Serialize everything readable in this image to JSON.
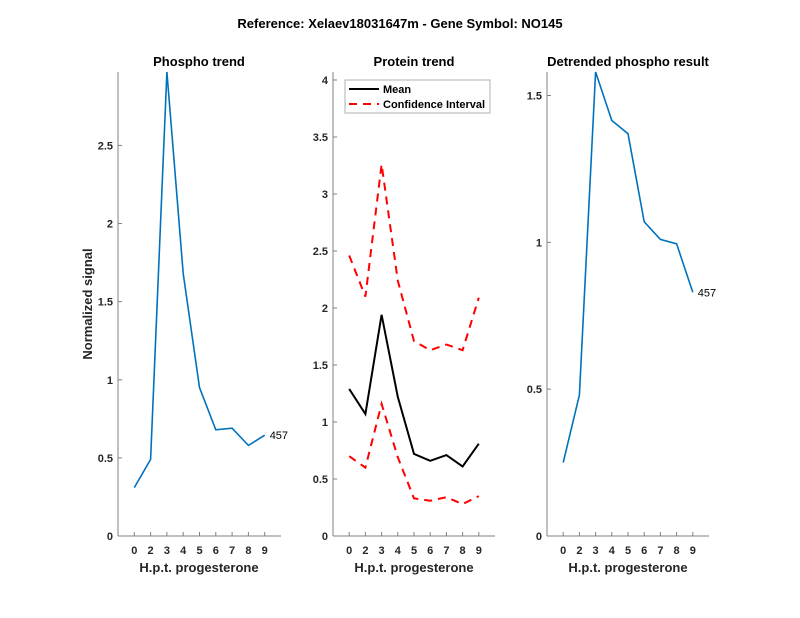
{
  "suptitle": "Reference:  Xelaev18031647m - Gene Symbol:  NO145",
  "colors": {
    "phospho": "#0072BD",
    "mean": "#000000",
    "ci": "#FF0000",
    "axis": "#808080"
  },
  "chart_data": [
    {
      "type": "line",
      "title": "Phospho trend",
      "xlabel": "H.p.t. progesterone",
      "ylabel": "Normalized signal",
      "categories": [
        "0",
        "2",
        "3",
        "4",
        "5",
        "6",
        "7",
        "8",
        "9"
      ],
      "ylim": [
        0,
        2.97
      ],
      "yticks": [
        "0",
        "0.5",
        "1",
        "1.5",
        "2",
        "2.5"
      ],
      "ytick_values": [
        0,
        0.5,
        1,
        1.5,
        2,
        2.5
      ],
      "grid": false,
      "series": [
        {
          "name": "457",
          "values": [
            0.31,
            0.49,
            2.97,
            1.68,
            0.95,
            0.68,
            0.69,
            0.58,
            0.645
          ]
        }
      ],
      "annotation": "457"
    },
    {
      "type": "line",
      "title": "Protein trend",
      "xlabel": "H.p.t. progesterone",
      "ylabel": "",
      "categories": [
        "0",
        "2",
        "3",
        "4",
        "5",
        "6",
        "7",
        "8",
        "9"
      ],
      "ylim": [
        0,
        4.07
      ],
      "yticks": [
        "0",
        "0.5",
        "1",
        "1.5",
        "2",
        "2.5",
        "3",
        "3.5",
        "4"
      ],
      "ytick_values": [
        0,
        0.5,
        1,
        1.5,
        2,
        2.5,
        3,
        3.5,
        4
      ],
      "grid": false,
      "legend": {
        "position": "top",
        "entries": [
          "Mean",
          "Confidence Interval"
        ]
      },
      "series": [
        {
          "name": "Mean",
          "values": [
            1.29,
            1.07,
            1.94,
            1.22,
            0.72,
            0.66,
            0.71,
            0.61,
            0.81
          ]
        },
        {
          "name": "Confidence Interval (upper)",
          "values": [
            2.46,
            2.1,
            3.26,
            2.24,
            1.71,
            1.63,
            1.68,
            1.63,
            2.09
          ]
        },
        {
          "name": "Confidence Interval (lower)",
          "values": [
            0.7,
            0.6,
            1.16,
            0.69,
            0.33,
            0.31,
            0.34,
            0.28,
            0.35
          ]
        }
      ]
    },
    {
      "type": "line",
      "title": "Detrended phospho result",
      "xlabel": "H.p.t. progesterone",
      "ylabel": "",
      "categories": [
        "0",
        "2",
        "3",
        "4",
        "5",
        "6",
        "7",
        "8",
        "9"
      ],
      "ylim": [
        0,
        1.58
      ],
      "yticks": [
        "0",
        "0.5",
        "1",
        "1.5"
      ],
      "ytick_values": [
        0,
        0.5,
        1,
        1.5
      ],
      "grid": false,
      "series": [
        {
          "name": "457",
          "values": [
            0.25,
            0.48,
            1.58,
            1.415,
            1.37,
            1.07,
            1.01,
            0.995,
            0.83
          ]
        }
      ],
      "annotation": "457"
    }
  ]
}
